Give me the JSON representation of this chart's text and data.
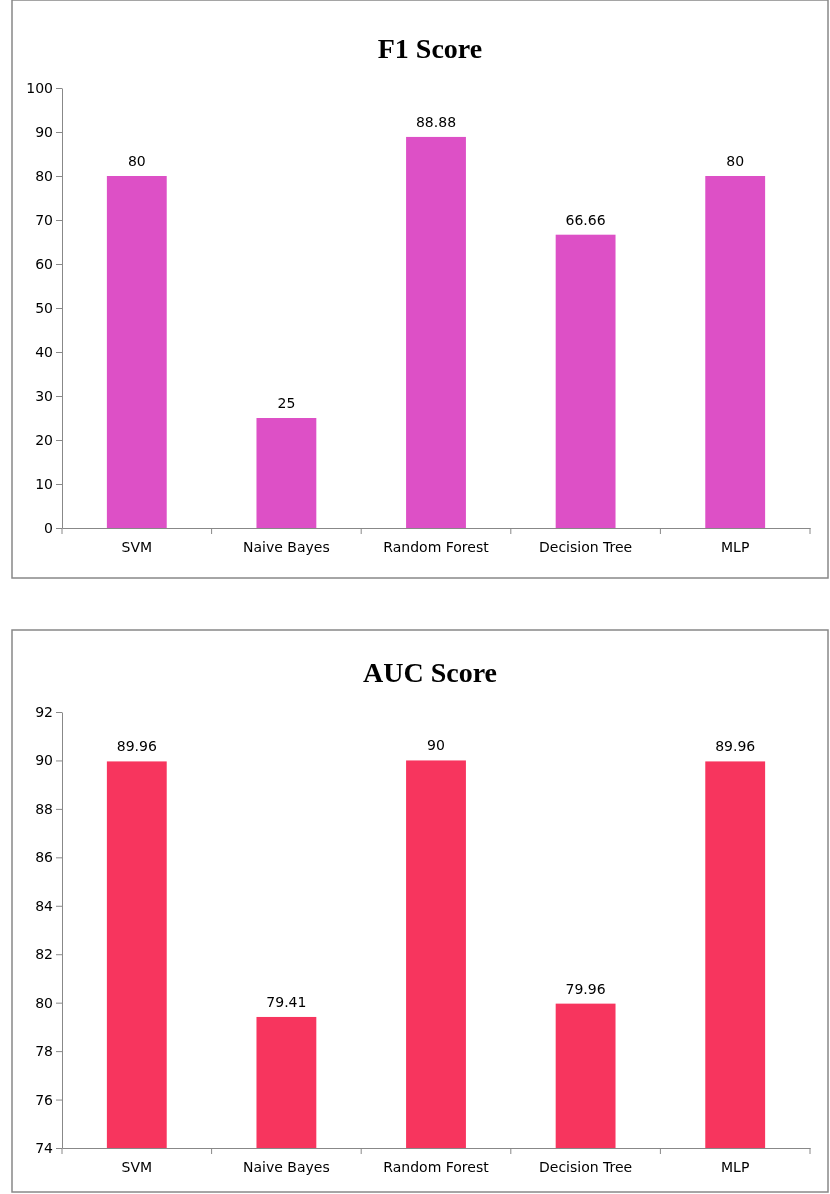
{
  "chart_data": [
    {
      "type": "bar",
      "title": "F1 Score",
      "categories": [
        "SVM",
        "Naive Bayes",
        "Random Forest",
        "Decision Tree",
        "MLP"
      ],
      "values": [
        80,
        25,
        88.88,
        66.66,
        80
      ],
      "color": "#dd50c6",
      "ylim": [
        0,
        100
      ],
      "yticks": [
        0,
        10,
        20,
        30,
        40,
        50,
        60,
        70,
        80,
        90,
        100
      ],
      "data_labels": true,
      "grid": false
    },
    {
      "type": "bar",
      "title": "AUC Score",
      "categories": [
        "SVM",
        "Naive Bayes",
        "Random Forest",
        "Decision Tree",
        "MLP"
      ],
      "values": [
        89.96,
        79.41,
        90,
        79.96,
        89.96
      ],
      "color": "#f7355e",
      "ylim": [
        74,
        92
      ],
      "yticks": [
        74,
        76,
        78,
        80,
        82,
        84,
        86,
        88,
        90,
        92
      ],
      "data_labels": true,
      "grid": false
    }
  ]
}
